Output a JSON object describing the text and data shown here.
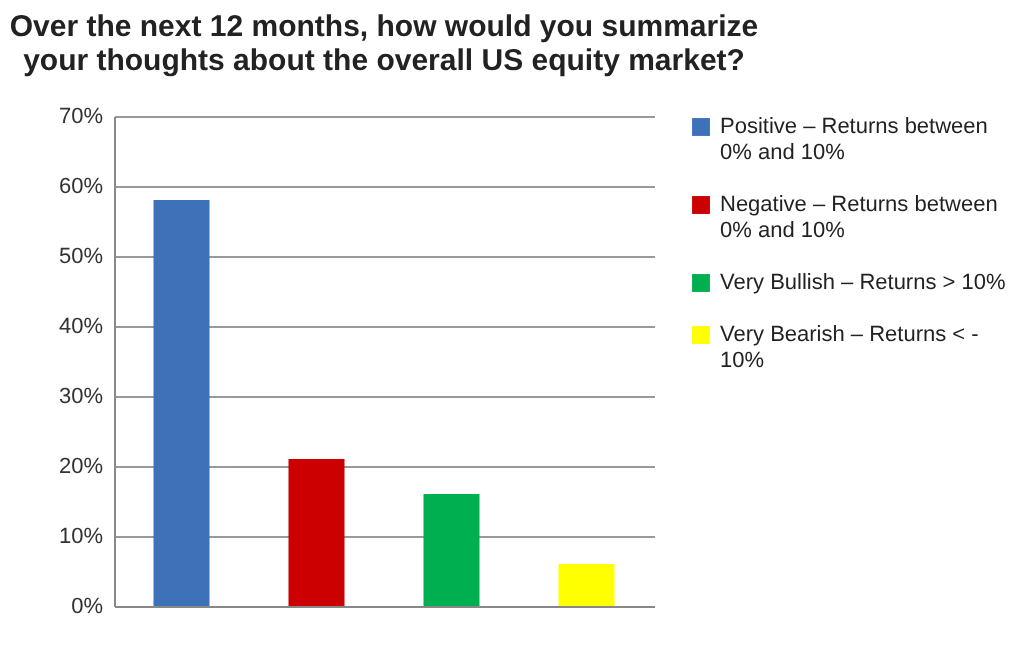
{
  "chart_data": {
    "type": "bar",
    "title": "Over the next 12 months, how would you summarize your thoughts about the overall US equity market?",
    "categories": [
      null,
      null,
      null,
      null
    ],
    "series": [
      {
        "name": "Positive – Returns between 0% and 10%",
        "color": "#3d71b8",
        "values": [
          58,
          null,
          null,
          null
        ]
      },
      {
        "name": "Negative – Returns between 0% and 10%",
        "color": "#cc0000",
        "values": [
          null,
          21,
          null,
          null
        ]
      },
      {
        "name": "Very Bullish – Returns > 10%",
        "color": "#00b050",
        "values": [
          null,
          null,
          16,
          null
        ]
      },
      {
        "name": "Very Bearish – Returns < - 10%",
        "color": "#ffff00",
        "values": [
          null,
          null,
          null,
          6
        ]
      }
    ],
    "ylim": [
      0,
      70
    ],
    "yticks": [
      {
        "value": 0,
        "label": "0%"
      },
      {
        "value": 10,
        "label": "10%"
      },
      {
        "value": 20,
        "label": "20%"
      },
      {
        "value": 30,
        "label": "30%"
      },
      {
        "value": 40,
        "label": "40%"
      },
      {
        "value": 50,
        "label": "50%"
      },
      {
        "value": 60,
        "label": "60%"
      },
      {
        "value": 70,
        "label": "70%"
      }
    ],
    "grid": "y",
    "legend": "right"
  }
}
